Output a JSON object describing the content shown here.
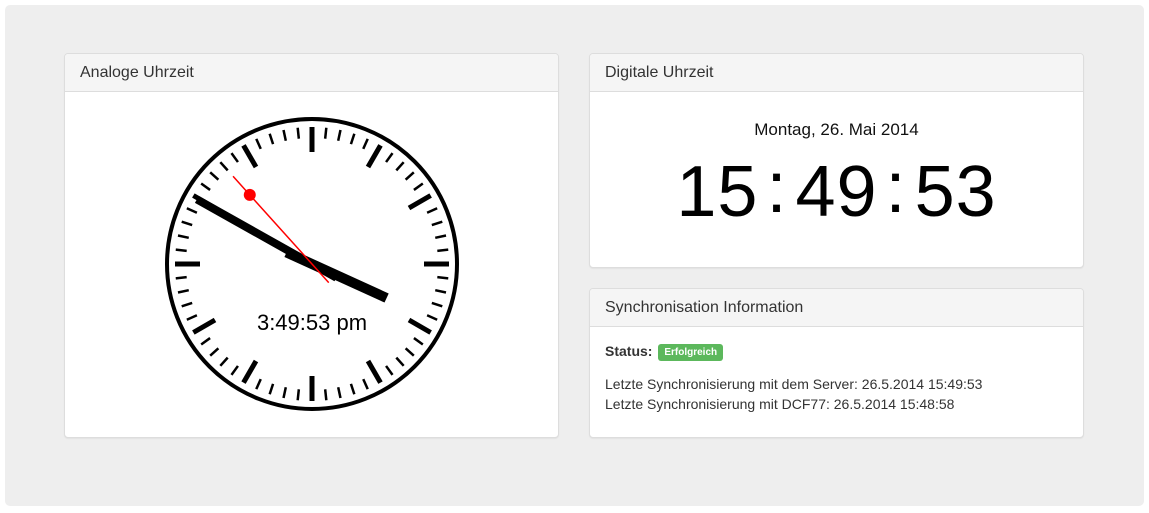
{
  "analog_panel": {
    "title": "Analoge Uhrzeit",
    "time_text": "3:49:53 pm",
    "time": {
      "hours": 15,
      "minutes": 49,
      "seconds": 53
    }
  },
  "digital_panel": {
    "title": "Digitale Uhrzeit",
    "date": "Montag, 26. Mai 2014",
    "hours": "15",
    "minutes": "49",
    "seconds": "53",
    "separator": ":"
  },
  "sync_panel": {
    "title": "Synchronisation Information",
    "status_label": "Status:",
    "status_badge": "Erfolgreich",
    "server_sync": "Letzte Synchronisierung mit dem Server: 26.5.2014 15:49:53",
    "dcf77_sync": "Letzte Synchronisierung mit DCF77: 26.5.2014 15:48:58"
  },
  "colors": {
    "second_hand": "#ff0000",
    "status_success": "#5cb85c",
    "background": "#eeeeee"
  }
}
